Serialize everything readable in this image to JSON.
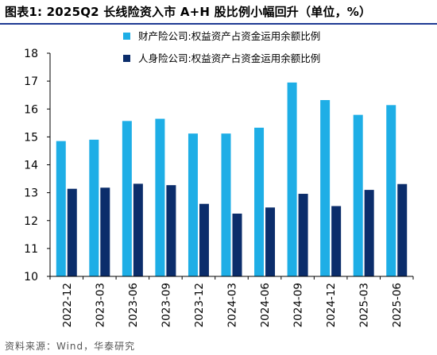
{
  "title": "图表1:  2025Q2 长线险资入市 A+H 股比例小幅回升（单位，%）",
  "source": "资料来源：Wind，华泰研究",
  "colors": {
    "series1": "#1eaee6",
    "series2": "#0b2d6b",
    "rule": "#1f3a93"
  },
  "chart_data": {
    "type": "bar",
    "categories": [
      "2022-12",
      "2023-03",
      "2023-06",
      "2023-09",
      "2023-12",
      "2024-03",
      "2024-06",
      "2024-09",
      "2024-12",
      "2025-03",
      "2025-06"
    ],
    "series": [
      {
        "name": "财产险公司:权益资产占资金运用余额比例",
        "values": [
          14.85,
          14.9,
          15.57,
          15.65,
          15.12,
          15.12,
          15.33,
          16.95,
          16.32,
          15.79,
          16.14
        ]
      },
      {
        "name": "人身险公司:权益资产占资金运用余额比例",
        "values": [
          13.14,
          13.18,
          13.32,
          13.27,
          12.6,
          12.25,
          12.47,
          12.96,
          12.52,
          13.1,
          13.31
        ]
      }
    ],
    "ylim": [
      10,
      18
    ],
    "yticks": [
      10,
      11,
      12,
      13,
      14,
      15,
      16,
      17,
      18
    ],
    "grid": false,
    "legend_position": "top-left"
  }
}
